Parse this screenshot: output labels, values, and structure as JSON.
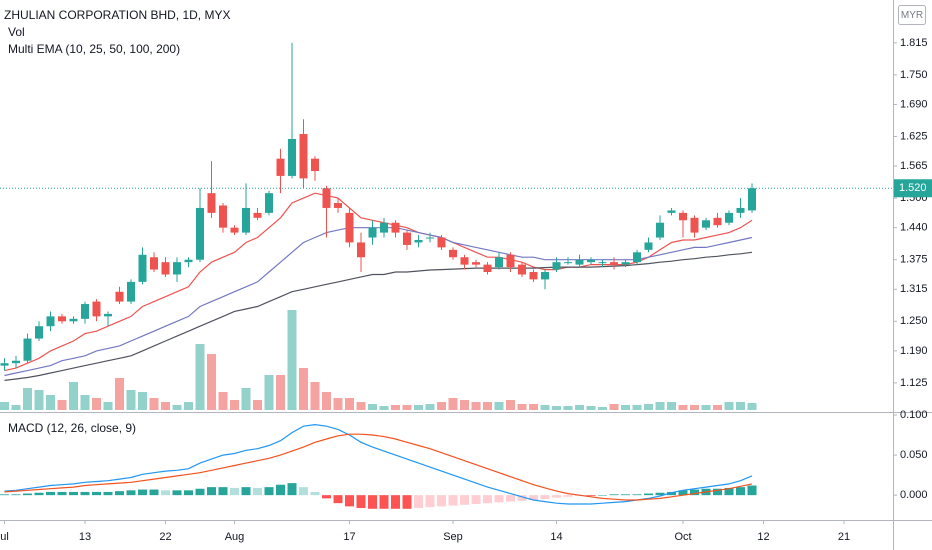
{
  "chart_data": {
    "type": "candlestick",
    "title": "ZHULIAN CORPORATION BHD, 1D, MYX",
    "currency": "MYR",
    "categories": [
      "ul",
      null,
      null,
      null,
      null,
      null,
      null,
      "13",
      null,
      null,
      null,
      null,
      null,
      null,
      "22",
      null,
      null,
      null,
      null,
      null,
      "Aug",
      null,
      null,
      null,
      null,
      null,
      null,
      null,
      null,
      null,
      "17",
      null,
      null,
      null,
      null,
      null,
      null,
      null,
      null,
      "Sep",
      null,
      null,
      null,
      null,
      null,
      null,
      null,
      null,
      "14",
      null,
      null,
      null,
      null,
      null,
      null,
      null,
      null,
      null,
      null,
      "Oct",
      null,
      null,
      null,
      null,
      null,
      null,
      "12",
      null,
      null,
      null,
      null,
      null,
      null,
      "21",
      null,
      null,
      null,
      null
    ],
    "open": [
      1.16,
      1.165,
      1.17,
      1.215,
      1.24,
      1.26,
      1.25,
      1.255,
      1.29,
      1.26,
      1.31,
      1.29,
      1.33,
      1.38,
      1.37,
      1.345,
      1.37,
      1.375,
      1.51,
      1.485,
      1.44,
      1.43,
      1.47,
      1.47,
      1.58,
      1.545,
      1.63,
      1.58,
      1.52,
      1.49,
      1.47,
      1.41,
      1.42,
      1.43,
      1.45,
      1.43,
      1.41,
      1.42,
      1.42,
      1.395,
      1.38,
      1.37,
      1.365,
      1.36,
      1.385,
      1.365,
      1.35,
      1.335,
      1.355,
      1.37,
      1.365,
      1.37,
      1.37,
      1.37,
      1.365,
      1.37,
      1.395,
      1.42,
      1.47,
      1.47,
      1.46,
      1.44,
      1.46,
      1.45,
      1.47,
      1.475,
      null,
      null,
      null,
      null,
      null,
      null,
      null,
      null,
      null,
      null,
      null,
      null
    ],
    "high": [
      1.175,
      1.18,
      1.225,
      1.25,
      1.27,
      1.265,
      1.26,
      1.29,
      1.295,
      1.27,
      1.32,
      1.335,
      1.4,
      1.39,
      1.38,
      1.38,
      1.38,
      1.52,
      1.575,
      1.49,
      1.445,
      1.53,
      1.48,
      1.515,
      1.6,
      1.815,
      1.66,
      1.585,
      1.525,
      1.5,
      1.48,
      1.43,
      1.455,
      1.46,
      1.455,
      1.435,
      1.425,
      1.43,
      1.425,
      1.4,
      1.385,
      1.375,
      1.37,
      1.39,
      1.39,
      1.37,
      1.355,
      1.355,
      1.38,
      1.38,
      1.385,
      1.38,
      1.375,
      1.38,
      1.375,
      1.395,
      1.42,
      1.465,
      1.48,
      1.475,
      1.465,
      1.46,
      1.47,
      1.475,
      1.5,
      1.53,
      null,
      null,
      null,
      null,
      null,
      null,
      null,
      null,
      null,
      null,
      null,
      null
    ],
    "low": [
      1.15,
      1.155,
      1.165,
      1.21,
      1.23,
      1.245,
      1.245,
      1.245,
      1.25,
      1.24,
      1.285,
      1.285,
      1.325,
      1.35,
      1.34,
      1.33,
      1.36,
      1.37,
      1.46,
      1.43,
      1.425,
      1.425,
      1.455,
      1.465,
      1.51,
      1.54,
      1.52,
      1.535,
      1.42,
      1.47,
      1.4,
      1.35,
      1.405,
      1.42,
      1.42,
      1.395,
      1.4,
      1.41,
      1.395,
      1.375,
      1.355,
      1.36,
      1.345,
      1.355,
      1.35,
      1.34,
      1.33,
      1.315,
      1.35,
      1.365,
      1.36,
      1.365,
      1.36,
      1.355,
      1.36,
      1.365,
      1.39,
      1.415,
      1.465,
      1.42,
      1.42,
      1.435,
      1.44,
      1.445,
      1.46,
      1.47,
      null,
      null,
      null,
      null,
      null,
      null,
      null,
      null,
      null,
      null,
      null,
      null
    ],
    "close": [
      1.165,
      1.17,
      1.215,
      1.24,
      1.26,
      1.25,
      1.255,
      1.285,
      1.26,
      1.265,
      1.29,
      1.33,
      1.385,
      1.355,
      1.345,
      1.37,
      1.375,
      1.48,
      1.47,
      1.44,
      1.43,
      1.48,
      1.46,
      1.51,
      1.545,
      1.62,
      1.54,
      1.555,
      1.48,
      1.48,
      1.41,
      1.38,
      1.44,
      1.45,
      1.43,
      1.405,
      1.415,
      1.42,
      1.4,
      1.38,
      1.365,
      1.365,
      1.35,
      1.38,
      1.36,
      1.345,
      1.335,
      1.35,
      1.37,
      1.37,
      1.375,
      1.375,
      1.37,
      1.365,
      1.37,
      1.39,
      1.41,
      1.45,
      1.475,
      1.455,
      1.43,
      1.455,
      1.445,
      1.47,
      1.48,
      1.52,
      null,
      null,
      null,
      null,
      null,
      null,
      null,
      null,
      null,
      null,
      null,
      null
    ],
    "up_color": "#26a69a",
    "down_color": "#ef5350",
    "ylim": [
      1.07,
      1.902
    ],
    "yticks": [
      1.815,
      {
        "value": 1.75,
        "label": "1.750"
      },
      {
        "value": 1.69,
        "label": "1.690"
      },
      1.625,
      1.565,
      {
        "value": 1.5,
        "label": "1.500"
      },
      {
        "value": 1.44,
        "label": "1.440"
      },
      1.375,
      1.315,
      {
        "value": 1.25,
        "label": "1.250"
      },
      {
        "value": 1.19,
        "label": "1.190"
      },
      1.125
    ],
    "last_price": {
      "value": 1.52,
      "label": "1.520"
    },
    "volume": {
      "name": "Vol",
      "ylim": [
        0,
        100
      ],
      "up_color": "#93d2cb",
      "down_color": "#f5a3a1",
      "values": [
        8,
        5,
        22,
        20,
        15,
        10,
        28,
        15,
        12,
        8,
        32,
        20,
        18,
        12,
        8,
        5,
        8,
        66,
        56,
        18,
        10,
        22,
        10,
        35,
        35,
        100,
        42,
        28,
        18,
        12,
        12,
        8,
        6,
        4,
        5,
        5,
        5,
        6,
        8,
        12,
        10,
        8,
        8,
        8,
        10,
        6,
        6,
        5,
        4,
        4,
        5,
        4,
        3,
        6,
        5,
        5,
        6,
        8,
        8,
        5,
        5,
        5,
        5,
        8,
        8,
        7,
        null,
        null,
        null,
        null,
        null,
        null,
        null,
        null,
        null,
        null,
        null,
        null
      ]
    },
    "overlay": {
      "name": "Multi EMA (10, 25, 50, 100, 200)",
      "series": [
        {
          "color": "#ef5350",
          "values": [
            1.15,
            1.155,
            1.165,
            1.175,
            1.19,
            1.2,
            1.21,
            1.225,
            1.23,
            1.24,
            1.25,
            1.26,
            1.28,
            1.29,
            1.3,
            1.31,
            1.32,
            1.35,
            1.37,
            1.38,
            1.39,
            1.41,
            1.42,
            1.44,
            1.46,
            1.49,
            1.5,
            1.51,
            1.505,
            1.5,
            1.48,
            1.46,
            1.455,
            1.45,
            1.445,
            1.44,
            1.43,
            1.425,
            1.42,
            1.41,
            1.4,
            1.39,
            1.38,
            1.38,
            1.375,
            1.37,
            1.36,
            1.355,
            1.355,
            1.36,
            1.36,
            1.365,
            1.365,
            1.365,
            1.365,
            1.37,
            1.38,
            1.395,
            1.41,
            1.415,
            1.415,
            1.42,
            1.425,
            1.43,
            1.44,
            1.455,
            null,
            null,
            null,
            null,
            null,
            null,
            null,
            null,
            null,
            null,
            null,
            null
          ]
        },
        {
          "color": "#7478c2",
          "values": [
            1.14,
            1.145,
            1.15,
            1.155,
            1.16,
            1.17,
            1.175,
            1.18,
            1.19,
            1.195,
            1.2,
            1.21,
            1.22,
            1.23,
            1.24,
            1.25,
            1.26,
            1.28,
            1.29,
            1.3,
            1.31,
            1.32,
            1.33,
            1.35,
            1.37,
            1.39,
            1.41,
            1.42,
            1.43,
            1.435,
            1.44,
            1.44,
            1.44,
            1.44,
            1.44,
            1.435,
            1.43,
            1.425,
            1.42,
            1.41,
            1.405,
            1.4,
            1.395,
            1.39,
            1.385,
            1.38,
            1.38,
            1.375,
            1.375,
            1.375,
            1.375,
            1.375,
            1.375,
            1.375,
            1.375,
            1.375,
            1.38,
            1.385,
            1.39,
            1.395,
            1.4,
            1.4,
            1.405,
            1.41,
            1.415,
            1.42,
            null,
            null,
            null,
            null,
            null,
            null,
            null,
            null,
            null,
            null,
            null,
            null
          ]
        },
        {
          "color": "#50535e",
          "values": [
            1.13,
            1.133,
            1.136,
            1.14,
            1.145,
            1.15,
            1.155,
            1.16,
            1.165,
            1.17,
            1.175,
            1.18,
            1.19,
            1.2,
            1.21,
            1.22,
            1.23,
            1.24,
            1.25,
            1.26,
            1.27,
            1.275,
            1.28,
            1.29,
            1.3,
            1.31,
            1.315,
            1.32,
            1.325,
            1.33,
            1.335,
            1.34,
            1.345,
            1.345,
            1.35,
            1.35,
            1.352,
            1.354,
            1.355,
            1.356,
            1.357,
            1.358,
            1.358,
            1.358,
            1.358,
            1.358,
            1.358,
            1.359,
            1.36,
            1.36,
            1.36,
            1.36,
            1.361,
            1.362,
            1.363,
            1.365,
            1.367,
            1.37,
            1.372,
            1.375,
            1.377,
            1.38,
            1.382,
            1.385,
            1.387,
            1.39,
            null,
            null,
            null,
            null,
            null,
            null,
            null,
            null,
            null,
            null,
            null,
            null
          ]
        }
      ]
    },
    "macd": {
      "name": "MACD (12, 26, close, 9)",
      "ylim": [
        -0.031,
        0.1025
      ],
      "yticks": [
        {
          "value": 0.1,
          "label": "0.100"
        },
        {
          "value": 0.05,
          "label": "0.050"
        },
        {
          "value": 0,
          "label": "0.000"
        }
      ],
      "series": [
        {
          "color": "#2196f3",
          "values": [
            0.005,
            0.006,
            0.008,
            0.01,
            0.012,
            0.013,
            0.014,
            0.016,
            0.017,
            0.018,
            0.02,
            0.022,
            0.026,
            0.028,
            0.03,
            0.031,
            0.033,
            0.04,
            0.045,
            0.05,
            0.052,
            0.056,
            0.058,
            0.062,
            0.068,
            0.078,
            0.086,
            0.088,
            0.086,
            0.082,
            0.075,
            0.066,
            0.06,
            0.055,
            0.05,
            0.045,
            0.04,
            0.035,
            0.03,
            0.025,
            0.02,
            0.015,
            0.01,
            0.006,
            0.002,
            -0.002,
            -0.006,
            -0.008,
            -0.01,
            -0.011,
            -0.011,
            -0.011,
            -0.01,
            -0.009,
            -0.008,
            -0.006,
            -0.004,
            -0.001,
            0.003,
            0.006,
            0.008,
            0.01,
            0.012,
            0.014,
            0.018,
            0.024,
            null,
            null,
            null,
            null,
            null,
            null,
            null,
            null,
            null,
            null,
            null,
            null
          ]
        },
        {
          "color": "#f4511e",
          "values": [
            0.004,
            0.005,
            0.006,
            0.007,
            0.008,
            0.009,
            0.01,
            0.012,
            0.013,
            0.014,
            0.015,
            0.016,
            0.018,
            0.02,
            0.022,
            0.024,
            0.026,
            0.028,
            0.031,
            0.034,
            0.037,
            0.04,
            0.043,
            0.046,
            0.05,
            0.055,
            0.06,
            0.066,
            0.07,
            0.074,
            0.076,
            0.076,
            0.075,
            0.073,
            0.07,
            0.066,
            0.062,
            0.058,
            0.053,
            0.048,
            0.043,
            0.038,
            0.033,
            0.028,
            0.023,
            0.018,
            0.013,
            0.009,
            0.005,
            0.002,
            0.0,
            -0.002,
            -0.004,
            -0.005,
            -0.006,
            -0.006,
            -0.005,
            -0.004,
            -0.002,
            0.0,
            0.002,
            0.004,
            0.006,
            0.008,
            0.011,
            0.014,
            null,
            null,
            null,
            null,
            null,
            null,
            null,
            null,
            null,
            null,
            null,
            null
          ]
        }
      ],
      "histogram": {
        "colors": {
          "rising_up": "#26a69a",
          "falling_up": "#b2dfdb",
          "falling_down": "#ff5252",
          "rising_down": "#ffcdd2"
        },
        "values": [
          0.001,
          0.001,
          0.002,
          0.003,
          0.004,
          0.004,
          0.004,
          0.004,
          0.004,
          0.004,
          0.005,
          0.006,
          0.007,
          0.007,
          0.006,
          0.006,
          0.006,
          0.008,
          0.01,
          0.01,
          0.009,
          0.01,
          0.009,
          0.01,
          0.013,
          0.015,
          0.01,
          0.004,
          -0.004,
          -0.01,
          -0.014,
          -0.016,
          -0.017,
          -0.017,
          -0.017,
          -0.017,
          -0.016,
          -0.015,
          -0.014,
          -0.013,
          -0.012,
          -0.011,
          -0.01,
          -0.009,
          -0.008,
          -0.007,
          -0.006,
          -0.005,
          -0.003,
          -0.002,
          -0.001,
          -0.001,
          0.0,
          0.001,
          0.001,
          0.001,
          0.002,
          0.003,
          0.004,
          0.006,
          0.007,
          0.008,
          0.008,
          0.009,
          0.01,
          0.012,
          null,
          null,
          null,
          null,
          null,
          null,
          null,
          null,
          null,
          null,
          null,
          null
        ]
      }
    }
  }
}
